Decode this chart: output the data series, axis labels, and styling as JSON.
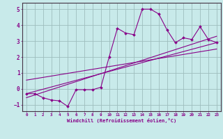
{
  "title": "",
  "xlabel": "Windchill (Refroidissement éolien,°C)",
  "ylabel": "",
  "bg_color": "#c8eaea",
  "line_color": "#880088",
  "grid_color": "#9dbdbd",
  "xlim": [
    -0.5,
    23.5
  ],
  "ylim": [
    -1.4,
    5.4
  ],
  "yticks": [
    -1,
    0,
    1,
    2,
    3,
    4,
    5
  ],
  "xticks": [
    0,
    1,
    2,
    3,
    4,
    5,
    6,
    7,
    8,
    9,
    10,
    11,
    12,
    13,
    14,
    15,
    16,
    17,
    18,
    19,
    20,
    21,
    22,
    23
  ],
  "main_x": [
    0,
    1,
    2,
    3,
    4,
    5,
    6,
    7,
    8,
    9,
    10,
    11,
    12,
    13,
    14,
    15,
    16,
    17,
    18,
    19,
    20,
    21,
    22,
    23
  ],
  "main_y": [
    -0.3,
    -0.3,
    -0.55,
    -0.7,
    -0.75,
    -1.1,
    -0.05,
    -0.05,
    -0.05,
    0.1,
    2.0,
    3.8,
    3.5,
    3.4,
    5.0,
    5.0,
    4.7,
    3.7,
    2.9,
    3.2,
    3.1,
    3.9,
    3.1,
    2.9
  ],
  "reg_line1_x": [
    0,
    23
  ],
  "reg_line1_y": [
    -0.3,
    2.9
  ],
  "reg_line2_x": [
    0,
    23
  ],
  "reg_line2_y": [
    -0.55,
    3.3
  ],
  "reg_line3_x": [
    0,
    23
  ],
  "reg_line3_y": [
    0.55,
    2.5
  ]
}
